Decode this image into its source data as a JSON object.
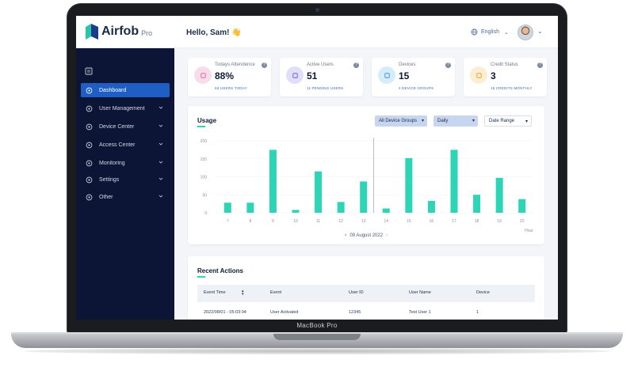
{
  "device_label": "MacBook Pro",
  "brand": {
    "name": "Airfob",
    "suffix": "Pro"
  },
  "greeting": "Hello, Sam! 👋",
  "language": "English",
  "sidebar": {
    "items": [
      {
        "label": "Dashboard",
        "icon": "dashboard-icon",
        "active": true
      },
      {
        "label": "User Management",
        "icon": "user-icon"
      },
      {
        "label": "Device Center",
        "icon": "device-icon"
      },
      {
        "label": "Access Center",
        "icon": "key-icon"
      },
      {
        "label": "Monitoring",
        "icon": "monitoring-icon"
      },
      {
        "label": "Settings",
        "icon": "gear-icon"
      },
      {
        "label": "Other",
        "icon": "other-icon"
      }
    ]
  },
  "stats": [
    {
      "title": "Todays Attendence",
      "value": "88%",
      "sub": "65 USERS TODAY",
      "color": "#f7dceb",
      "icon_color": "#e0559a"
    },
    {
      "title": "Active Users",
      "value": "51",
      "sub": "11 PENDING USERS",
      "color": "#e1defa",
      "icon_color": "#5a4fc7"
    },
    {
      "title": "Devices",
      "value": "15",
      "sub": "4 DEVICE GROUPS",
      "color": "#d7ecfb",
      "icon_color": "#2f86d6"
    },
    {
      "title": "Credit Status",
      "value": "3",
      "sub": "15 CREDITS MONTHLY",
      "color": "#fbeed2",
      "icon_color": "#d59a28"
    }
  ],
  "usage": {
    "title": "Usage",
    "filters": [
      "All Device Groups",
      "Daily",
      "Date Range"
    ],
    "date": "09 August 2022",
    "x_unit": "Hour"
  },
  "chart_data": {
    "type": "bar",
    "title": "Usage",
    "categories": [
      "7",
      "8",
      "9",
      "10",
      "11",
      "12",
      "13",
      "14",
      "15",
      "16",
      "17",
      "18",
      "19",
      "20"
    ],
    "values": [
      28,
      28,
      175,
      8,
      115,
      30,
      87,
      12,
      152,
      33,
      175,
      50,
      97,
      38
    ],
    "yticks": [
      0,
      50,
      100,
      150,
      200
    ],
    "ylim": [
      0,
      200
    ],
    "xlabel": "Hour",
    "ylabel": "",
    "bar_color": "#2dd4b5",
    "grid": true
  },
  "recent_actions": {
    "title": "Recent Actions",
    "columns": [
      "Event Time",
      "Event",
      "User ID",
      "User Name",
      "Device"
    ],
    "rows": [
      [
        "2022/08/01 - 05:03:04",
        "User Activated",
        "12345",
        "Test User 1",
        "1"
      ]
    ]
  }
}
